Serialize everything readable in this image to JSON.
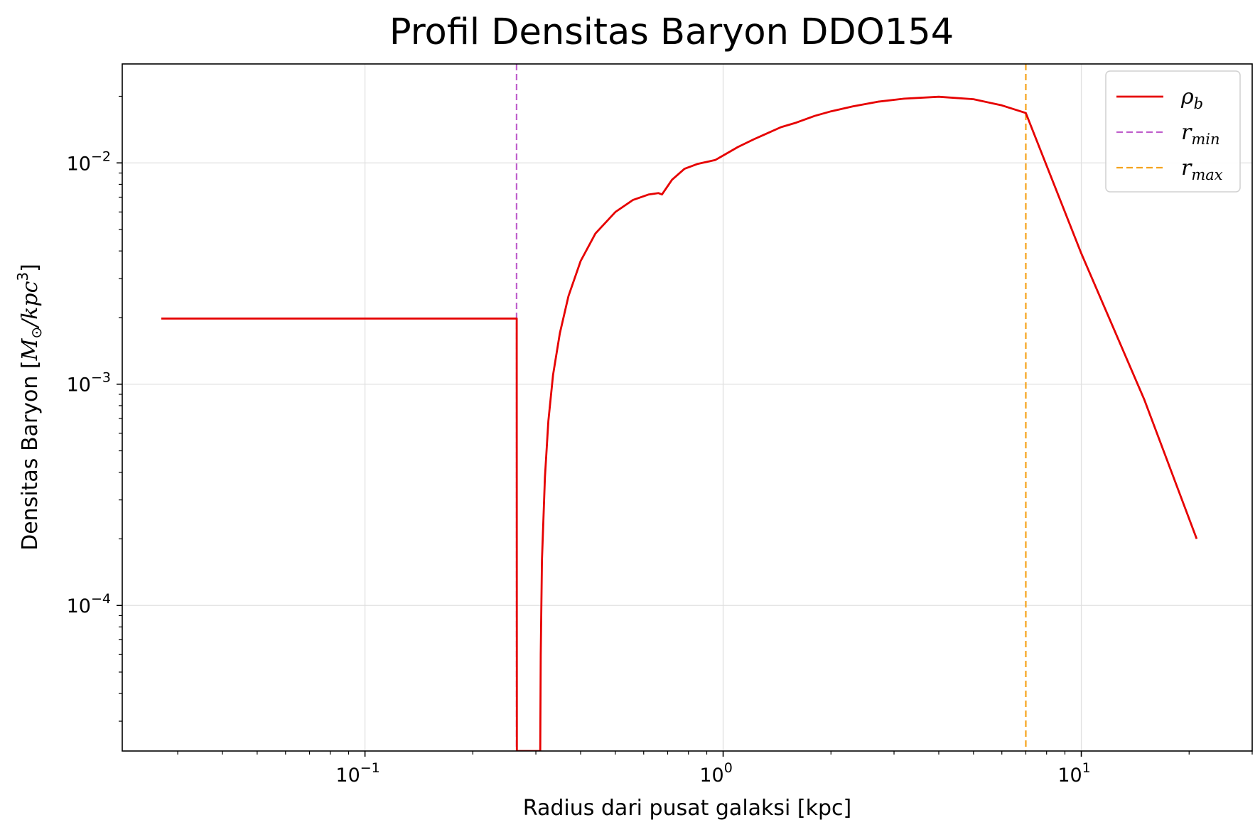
{
  "chart_data": {
    "type": "line",
    "title": "Profil Densitas Baryon DDO154",
    "xlabel": "Radius dari pusat galaksi [kpc]",
    "ylabel_text": "Densitas Baryon [",
    "ylabel_unit_main": "M",
    "ylabel_unit_sun": "⊙",
    "ylabel_unit_rest": "/kpc",
    "ylabel_unit_exp": "3",
    "ylabel_close": "]",
    "xscale": "log",
    "yscale": "log",
    "xlim": [
      0.021,
      30
    ],
    "ylim": [
      2.2e-05,
      0.028
    ],
    "grid": true,
    "legend_position": "top-right",
    "x_ticks": [
      {
        "value": 0.1,
        "base": "10",
        "exp": "−1"
      },
      {
        "value": 1,
        "base": "10",
        "exp": "0"
      },
      {
        "value": 10,
        "base": "10",
        "exp": "1"
      }
    ],
    "y_ticks": [
      {
        "value": 0.0001,
        "base": "10",
        "exp": "−4"
      },
      {
        "value": 0.001,
        "base": "10",
        "exp": "−3"
      },
      {
        "value": 0.01,
        "base": "10",
        "exp": "−2"
      }
    ],
    "series": [
      {
        "name": "ρ",
        "name_sub": "b",
        "color": "#e60000",
        "style": "solid",
        "x": [
          0.027,
          0.1,
          0.2,
          0.265,
          0.2652,
          0.2655,
          0.3085,
          0.3095,
          0.312,
          0.318,
          0.325,
          0.335,
          0.35,
          0.37,
          0.4,
          0.44,
          0.5,
          0.56,
          0.62,
          0.66,
          0.675,
          0.72,
          0.78,
          0.85,
          0.95,
          1.0,
          1.1,
          1.22,
          1.3,
          1.45,
          1.6,
          1.8,
          2.0,
          2.3,
          2.7,
          3.2,
          4.0,
          5.0,
          6.0,
          7.0,
          10.0,
          15.0,
          21.0
        ],
        "y": [
          0.00198,
          0.00198,
          0.00198,
          0.00198,
          0.00198,
          2.2e-05,
          2.2e-05,
          6e-05,
          0.00016,
          0.00038,
          0.00068,
          0.0011,
          0.0017,
          0.0025,
          0.0036,
          0.0048,
          0.006,
          0.0068,
          0.0072,
          0.0073,
          0.0072,
          0.0084,
          0.0094,
          0.0099,
          0.0103,
          0.0108,
          0.0118,
          0.0128,
          0.0134,
          0.0145,
          0.0152,
          0.0163,
          0.0171,
          0.018,
          0.0189,
          0.0195,
          0.0199,
          0.0194,
          0.0182,
          0.0168,
          0.0039,
          0.00085,
          0.0002
        ]
      },
      {
        "name": "r",
        "name_sub": "min",
        "color": "#bf5fcc",
        "style": "dashed",
        "vline": 0.265
      },
      {
        "name": "r",
        "name_sub": "max",
        "color": "#f5a31c",
        "style": "dashed",
        "vline": 7.0
      }
    ]
  }
}
